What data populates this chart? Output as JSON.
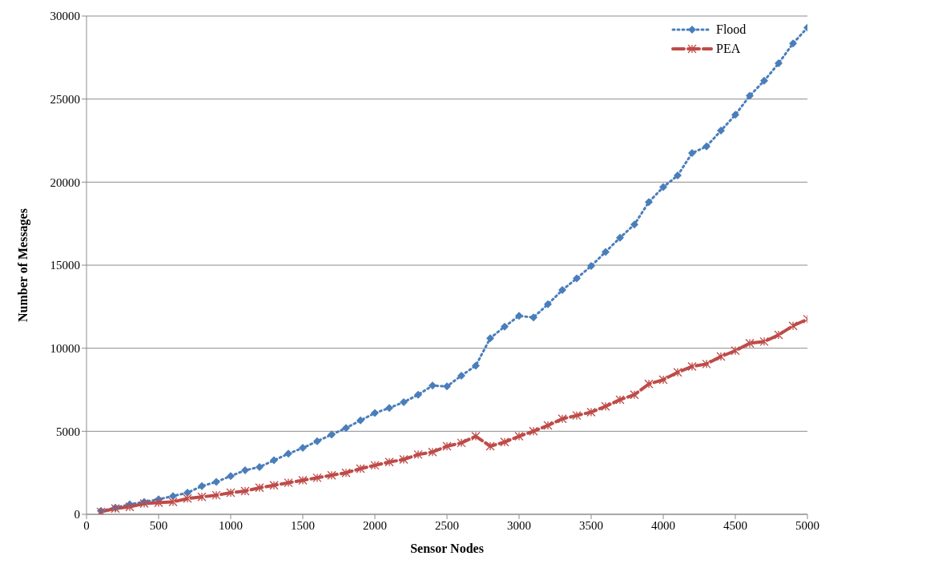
{
  "chart_data": {
    "type": "line",
    "xlabel": "Sensor Nodes",
    "ylabel": "Number of Messages",
    "x": [
      100,
      200,
      300,
      400,
      500,
      600,
      700,
      800,
      900,
      1000,
      1100,
      1200,
      1300,
      1400,
      1500,
      1600,
      1700,
      1800,
      1900,
      2000,
      2100,
      2200,
      2300,
      2400,
      2500,
      2600,
      2700,
      2800,
      2900,
      3000,
      3100,
      3200,
      3300,
      3400,
      3500,
      3600,
      3700,
      3800,
      3900,
      4000,
      4100,
      4200,
      4300,
      4400,
      4500,
      4600,
      4700,
      4800,
      4900,
      5000
    ],
    "series": [
      {
        "name": "Flood",
        "color": "#4a7ebb",
        "marker": "diamond",
        "line_style": "dotted",
        "values": [
          200,
          400,
          600,
          750,
          900,
          1100,
          1300,
          1700,
          1950,
          2300,
          2650,
          2850,
          3250,
          3650,
          4000,
          4400,
          4800,
          5200,
          5650,
          6100,
          6400,
          6750,
          7200,
          7750,
          7700,
          8350,
          8950,
          10600,
          11300,
          11950,
          11850,
          12650,
          13500,
          14200,
          14950,
          15800,
          16650,
          17450,
          18800,
          19700,
          20400,
          21750,
          22150,
          23100,
          24050,
          25200,
          26100,
          27150,
          28350,
          29300
        ]
      },
      {
        "name": "PEA",
        "color": "#be4b48",
        "marker": "cross",
        "line_style": "dashed",
        "values": [
          150,
          350,
          450,
          650,
          700,
          750,
          950,
          1050,
          1150,
          1300,
          1400,
          1600,
          1750,
          1900,
          2050,
          2200,
          2350,
          2500,
          2750,
          2950,
          3150,
          3300,
          3600,
          3750,
          4100,
          4300,
          4700,
          4100,
          4350,
          4700,
          5000,
          5350,
          5750,
          5950,
          6150,
          6500,
          6900,
          7200,
          7850,
          8100,
          8550,
          8900,
          9050,
          9500,
          9850,
          10300,
          10400,
          10800,
          11350,
          11750
        ]
      }
    ],
    "xlim": [
      0,
      5000
    ],
    "xticks": [
      0,
      500,
      1000,
      1500,
      2000,
      2500,
      3000,
      3500,
      4000,
      4500,
      5000
    ],
    "ylim": [
      0,
      30000
    ],
    "yticks": [
      0,
      5000,
      10000,
      15000,
      20000,
      25000,
      30000
    ],
    "grid": "y",
    "legend": "top right"
  }
}
